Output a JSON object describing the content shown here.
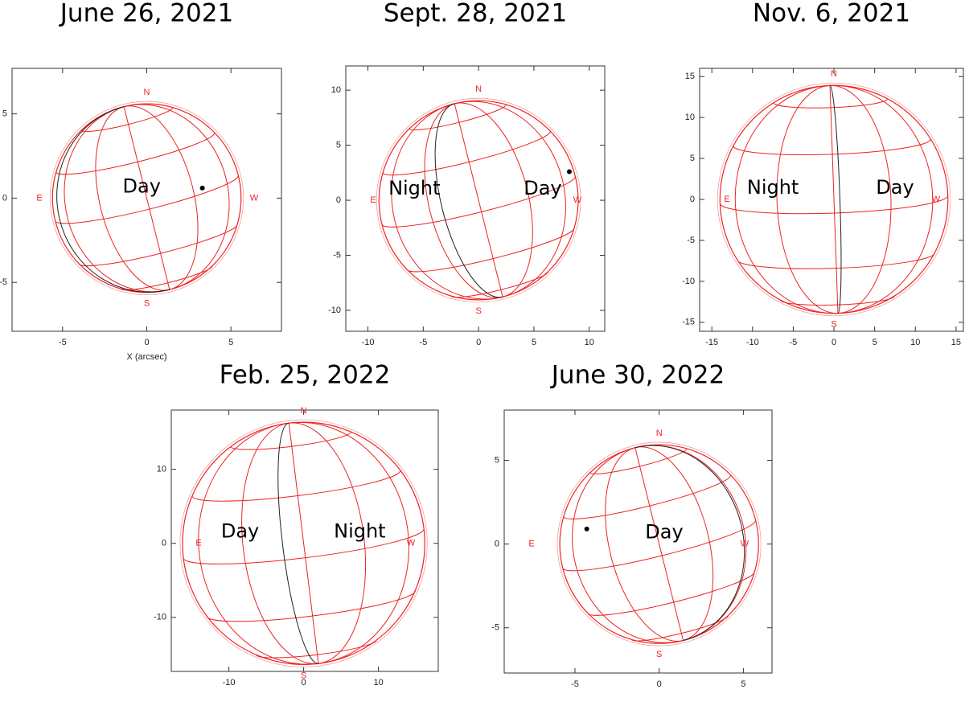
{
  "chart_data": [
    {
      "type": "globe",
      "title": "June 26, 2021",
      "x_label": "X (arcsec)",
      "xlim": [
        -8,
        8
      ],
      "ylim": [
        -7.9,
        7.7
      ],
      "xticks": [
        -5,
        0,
        5
      ],
      "yticks": [
        -5,
        0,
        5
      ],
      "radius": 5.6,
      "color": "#ee2222",
      "compass": [
        "N",
        "E",
        "S",
        "W"
      ],
      "annotations": [
        "Day"
      ],
      "points": {
        "x": [
          3.3
        ],
        "y": [
          0.6
        ]
      }
    },
    {
      "type": "globe",
      "title": "Sept. 28, 2021",
      "xlim": [
        -12,
        11.4
      ],
      "ylim": [
        -11.9,
        12.2
      ],
      "xticks": [
        -10,
        -5,
        0,
        5,
        10
      ],
      "yticks": [
        -10,
        -5,
        0,
        5,
        10
      ],
      "radius": 9,
      "color": "#ee2222",
      "compass": [
        "N",
        "E",
        "S",
        "W"
      ],
      "annotations": [
        "Night",
        "Day"
      ],
      "points": {
        "x": [
          8.2
        ],
        "y": [
          2.6
        ]
      }
    },
    {
      "type": "globe",
      "title": "Nov. 6, 2021",
      "xlim": [
        -16.5,
        15.9
      ],
      "ylim": [
        -16.1,
        16
      ],
      "xticks": [
        -15,
        -10,
        -5,
        0,
        5,
        10,
        15
      ],
      "yticks": [
        -15,
        -10,
        -5,
        0,
        5,
        10,
        15
      ],
      "radius": 14,
      "color": "#ee2222",
      "compass": [
        "N",
        "E",
        "S",
        "W"
      ],
      "annotations": [
        "Night",
        "Day"
      ]
    },
    {
      "type": "globe",
      "title": "Feb. 25, 2022",
      "xlim": [
        -17.7,
        18
      ],
      "ylim": [
        -17.3,
        18
      ],
      "xticks": [
        -10,
        0,
        10
      ],
      "yticks": [
        -10,
        0,
        10
      ],
      "radius": 16.2,
      "color": "#ee2222",
      "compass": [
        "N",
        "E",
        "S",
        "W"
      ],
      "annotations": [
        "Day",
        "Night"
      ]
    },
    {
      "type": "globe",
      "title": "June 30, 2022",
      "xlim": [
        -9.2,
        6.7
      ],
      "ylim": [
        -7.7,
        8
      ],
      "xticks": [
        -5,
        0,
        5
      ],
      "yticks": [
        -5,
        0,
        5
      ],
      "radius": 5.9,
      "color": "#ee2222",
      "compass": [
        "N",
        "E",
        "S",
        "W"
      ],
      "annotations": [
        "Day"
      ],
      "points": {
        "x": [
          -4.3
        ],
        "y": [
          0.9
        ]
      }
    }
  ]
}
